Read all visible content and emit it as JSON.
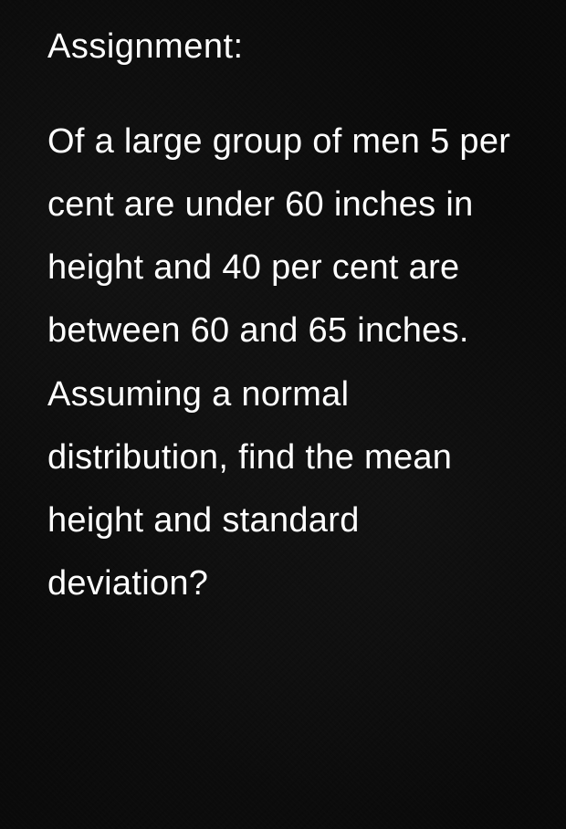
{
  "document": {
    "heading": "Assignment:",
    "body": " Of a large group of men 5 per cent are under 60 inches in height and 40 per cent are between 60 and 65 inches. Assuming a normal distribution, find the mean height and standard deviation?",
    "text_color": "#ffffff",
    "background_color": "#0a0a0a",
    "font_family": "Arial, Helvetica, sans-serif",
    "heading_fontsize": 38,
    "body_fontsize": 38,
    "line_height": 1.82
  }
}
